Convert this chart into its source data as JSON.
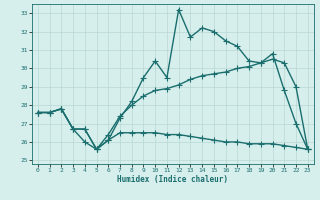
{
  "xlabel": "Humidex (Indice chaleur)",
  "xlim": [
    -0.5,
    23.5
  ],
  "ylim": [
    24.8,
    33.5
  ],
  "yticks": [
    25,
    26,
    27,
    28,
    29,
    30,
    31,
    32,
    33
  ],
  "xticks": [
    0,
    1,
    2,
    3,
    4,
    5,
    6,
    7,
    8,
    9,
    10,
    11,
    12,
    13,
    14,
    15,
    16,
    17,
    18,
    19,
    20,
    21,
    22,
    23
  ],
  "bg_color": "#d6efec",
  "line_color": "#1a6e6e",
  "grid_color": "#b8d8d4",
  "line1_x": [
    0,
    1,
    2,
    3,
    4,
    5,
    6,
    7,
    8,
    9,
    10,
    11,
    12,
    13,
    14,
    15,
    16,
    17,
    18,
    19,
    20,
    21,
    22,
    23
  ],
  "line1_y": [
    27.6,
    27.6,
    27.8,
    26.7,
    26.7,
    25.6,
    26.1,
    27.3,
    28.2,
    29.5,
    30.4,
    29.5,
    33.2,
    31.7,
    32.2,
    32.0,
    31.5,
    31.2,
    30.4,
    30.3,
    30.8,
    28.8,
    27.0,
    25.6
  ],
  "line2_x": [
    0,
    1,
    2,
    3,
    4,
    5,
    6,
    7,
    8,
    9,
    10,
    11,
    12,
    13,
    14,
    15,
    16,
    17,
    18,
    19,
    20,
    21,
    22,
    23
  ],
  "line2_y": [
    27.6,
    27.6,
    27.8,
    26.7,
    26.0,
    25.6,
    26.1,
    26.5,
    26.5,
    26.5,
    26.5,
    26.4,
    26.4,
    26.3,
    26.2,
    26.1,
    26.0,
    26.0,
    25.9,
    25.9,
    25.9,
    25.8,
    25.7,
    25.6
  ],
  "line3_x": [
    0,
    1,
    2,
    3,
    4,
    5,
    6,
    7,
    8,
    9,
    10,
    11,
    12,
    13,
    14,
    15,
    16,
    17,
    18,
    19,
    20,
    21,
    22,
    23
  ],
  "line3_y": [
    27.6,
    27.6,
    27.8,
    26.7,
    26.7,
    25.6,
    26.4,
    27.4,
    28.0,
    28.5,
    28.8,
    28.9,
    29.1,
    29.4,
    29.6,
    29.7,
    29.8,
    30.0,
    30.1,
    30.3,
    30.5,
    30.3,
    29.0,
    25.6
  ],
  "markersize": 2.5,
  "linewidth": 1.0
}
